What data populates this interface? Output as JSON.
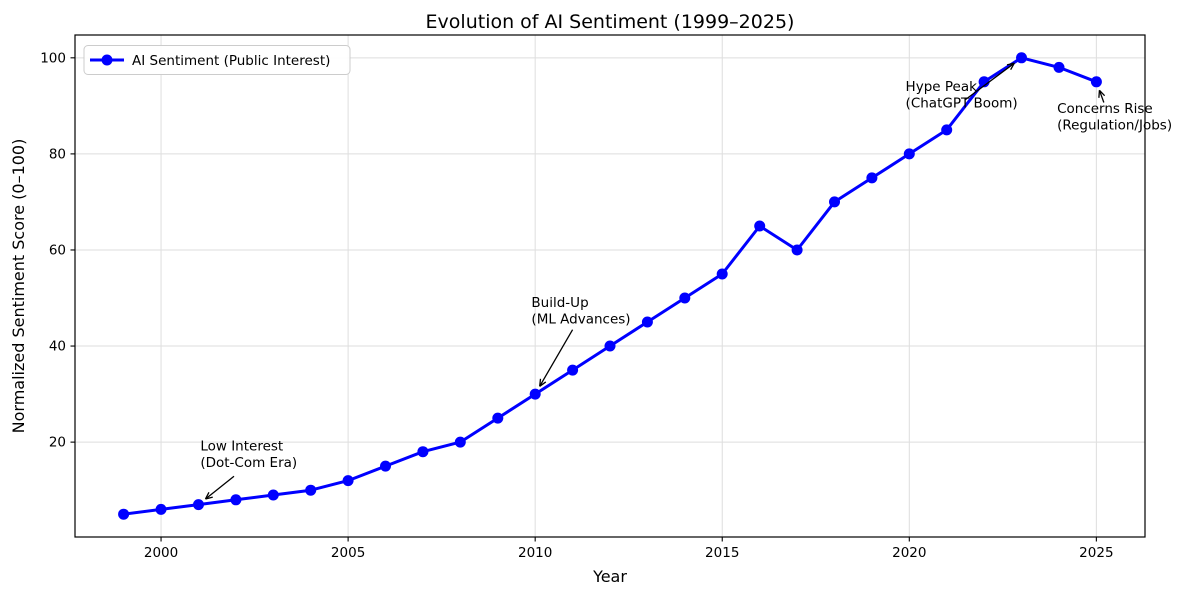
{
  "figure": {
    "title": "Evolution of AI Sentiment (1999–2025)"
  },
  "chart_data": {
    "type": "line",
    "title": "Evolution of AI Sentiment (1999–2025)",
    "xlabel": "Year",
    "ylabel": "Normalized Sentiment Score (0–100)",
    "x": [
      1999,
      2000,
      2001,
      2002,
      2003,
      2004,
      2005,
      2006,
      2007,
      2008,
      2009,
      2010,
      2011,
      2012,
      2013,
      2014,
      2015,
      2016,
      2017,
      2018,
      2019,
      2020,
      2021,
      2022,
      2023,
      2024,
      2025
    ],
    "series": [
      {
        "name": "AI Sentiment (Public Interest)",
        "values": [
          5,
          6,
          7,
          8,
          9,
          10,
          12,
          15,
          18,
          20,
          25,
          30,
          35,
          40,
          45,
          50,
          55,
          65,
          60,
          70,
          75,
          80,
          85,
          95,
          100,
          98,
          95
        ],
        "color": "#0000ff",
        "marker": "circle"
      }
    ],
    "xticks": [
      2000,
      2005,
      2010,
      2015,
      2020,
      2025
    ],
    "yticks": [
      20,
      40,
      60,
      80,
      100
    ],
    "xlim": [
      1997.7,
      2026.3
    ],
    "ylim": [
      0.25,
      104.75
    ],
    "grid": true,
    "legend": {
      "position": "upper left",
      "entries": [
        "AI Sentiment (Public Interest)"
      ]
    },
    "annotations": [
      {
        "id": "low-interest",
        "label_lines": [
          "Low Interest",
          "(Dot-Com Era)"
        ],
        "point": [
          2001,
          7
        ],
        "text": [
          2001.05,
          21.0
        ],
        "arrow_from": [
          2001.95,
          12.9
        ]
      },
      {
        "id": "build-up",
        "label_lines": [
          "Build-Up",
          "(ML Advances)"
        ],
        "point": [
          2010,
          30
        ],
        "text": [
          2009.9,
          50.8
        ],
        "arrow_from": [
          2011.0,
          43.4
        ]
      },
      {
        "id": "hype-peak",
        "label_lines": [
          "Hype Peak",
          "(ChatGPT Boom)"
        ],
        "point": [
          2023,
          100
        ],
        "text": [
          2019.9,
          95.8
        ],
        "arrow_from": [
          2021.5,
          91.3
        ]
      },
      {
        "id": "concerns-rise",
        "label_lines": [
          "Concerns Rise",
          "(Regulation/Jobs)"
        ],
        "point": [
          2025,
          95
        ],
        "text": [
          2023.95,
          91.2
        ],
        "arrow_from": [
          2025.2,
          90.7
        ]
      }
    ],
    "colors": {
      "line": "#0000ff",
      "grid": "#dedede",
      "spine": "#000000",
      "text": "#000000",
      "annotation_arrow": "#000000",
      "legend_border": "#cccccc",
      "legend_bg": "#ffffff"
    }
  }
}
